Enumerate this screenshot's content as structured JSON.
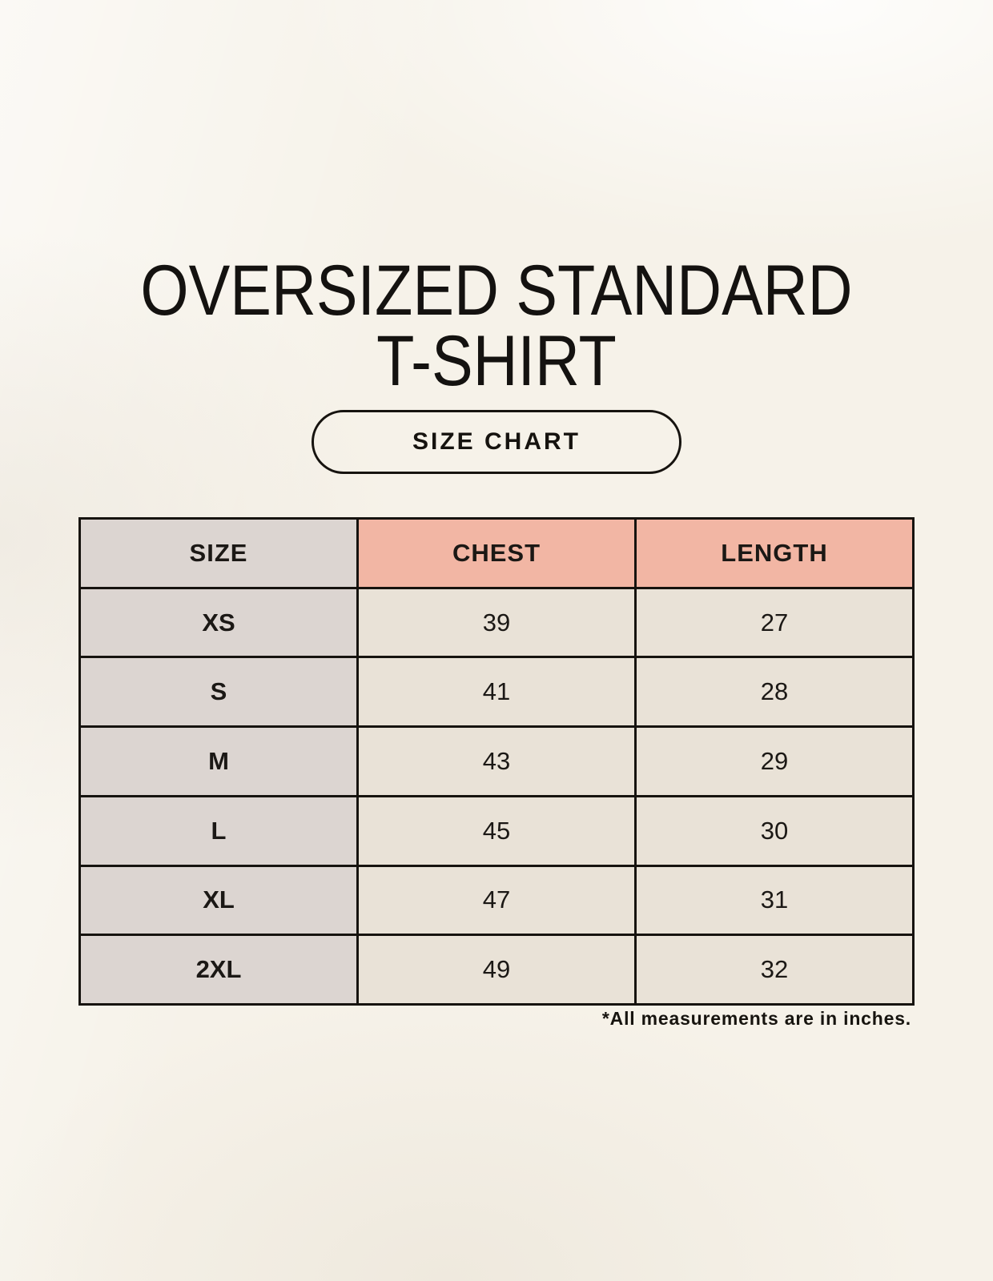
{
  "title": {
    "line1": "OVERSIZED STANDARD",
    "line2": "T-SHIRT"
  },
  "badge": {
    "label": "SIZE CHART"
  },
  "footnote": "*All measurements are in inches.",
  "colors": {
    "background": "#f6f2e9",
    "table_border": "#16130f",
    "size_column_bg": "#dcd5d1",
    "measure_header_bg": "#f2b6a4",
    "data_cell_bg": "#e9e2d7",
    "text": "#17140f"
  },
  "chart_data": {
    "type": "table",
    "title": "SIZE CHART",
    "columns": [
      "SIZE",
      "CHEST",
      "LENGTH"
    ],
    "rows": [
      {
        "size": "XS",
        "chest": 39,
        "length": 27
      },
      {
        "size": "S",
        "chest": 41,
        "length": 28
      },
      {
        "size": "M",
        "chest": 43,
        "length": 29
      },
      {
        "size": "L",
        "chest": 45,
        "length": 30
      },
      {
        "size": "XL",
        "chest": 47,
        "length": 31
      },
      {
        "size": "2XL",
        "chest": 49,
        "length": 32
      }
    ],
    "units": "inches",
    "note": "*All measurements are in inches."
  }
}
